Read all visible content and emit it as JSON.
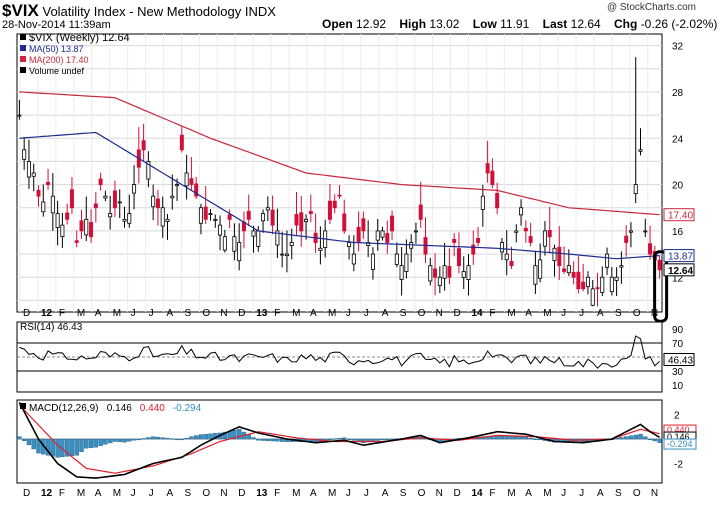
{
  "header": {
    "symbol": "$VIX",
    "name": "Volatility Index - New Methodology",
    "exchange": "INDX",
    "date": "28-Nov-2014 11:39am",
    "credit": "@ StockCharts.com",
    "quote": {
      "open_label": "Open",
      "open": "12.92",
      "high_label": "High",
      "high": "13.02",
      "low_label": "Low",
      "low": "11.91",
      "last_label": "Last",
      "last": "12.64",
      "chg_label": "Chg",
      "chg": "-0.26 (-2.02%)"
    }
  },
  "colors": {
    "up": "#000000",
    "down": "#d0103a",
    "ma50": "#1d2b8f",
    "ma200": "#c8283a",
    "macd": "#000000",
    "signal": "#e0202a",
    "hist": "#3a8fc0",
    "hist_text": "#3a8fc0"
  },
  "chart_data": [
    {
      "type": "candlestick",
      "title": "$VIX (Weekly) 12.64",
      "legend": [
        {
          "label": "$VIX (Weekly) 12.64",
          "color": "#000000"
        },
        {
          "label": "MA(50) 13.87",
          "color": "#1d2b8f"
        },
        {
          "label": "MA(200) 17.40",
          "color": "#c8283a"
        },
        {
          "label": "Volume undef",
          "color": "#000000"
        }
      ],
      "ylim": [
        9,
        33
      ],
      "yticks": [
        10,
        12,
        14,
        16,
        18,
        20,
        22,
        24,
        26,
        28,
        30,
        32
      ],
      "ytick_labels": [
        "12",
        "16",
        "20",
        "24",
        "28",
        "32"
      ],
      "ytick_label_values": [
        12,
        16,
        20,
        24,
        28,
        32
      ],
      "value_labels": [
        {
          "text": "17.40",
          "value": 17.4,
          "color": "#c8283a"
        },
        {
          "text": "13.87",
          "value": 13.87,
          "color": "#1d2b8f"
        },
        {
          "text": "12.64",
          "value": 12.64,
          "color": "#000000"
        }
      ],
      "x_month_labels": [
        "D",
        "12",
        "F",
        "M",
        "A",
        "M",
        "J",
        "J",
        "A",
        "S",
        "O",
        "N",
        "D",
        "13",
        "F",
        "M",
        "A",
        "M",
        "J",
        "J",
        "A",
        "S",
        "O",
        "N",
        "D",
        "14",
        "F",
        "M",
        "A",
        "M",
        "J",
        "J",
        "A",
        "S",
        "O",
        "N"
      ],
      "vix_close_anchors": [
        [
          0,
          26
        ],
        [
          1,
          23
        ],
        [
          2,
          22
        ],
        [
          3,
          21
        ],
        [
          4,
          19
        ],
        [
          5,
          18.5
        ],
        [
          6,
          20
        ],
        [
          7,
          19
        ],
        [
          8,
          17.5
        ],
        [
          9,
          16.5
        ],
        [
          10,
          17
        ],
        [
          11,
          18
        ],
        [
          12,
          15
        ],
        [
          13,
          16
        ],
        [
          14,
          17
        ],
        [
          15,
          15.5
        ],
        [
          16,
          18
        ],
        [
          17,
          20
        ],
        [
          18,
          19
        ],
        [
          19,
          17.5
        ],
        [
          20,
          18
        ],
        [
          21,
          18.5
        ],
        [
          22,
          17
        ],
        [
          23,
          17.5
        ],
        [
          24,
          20
        ],
        [
          25,
          21.5
        ],
        [
          26,
          23
        ],
        [
          27,
          22
        ],
        [
          28,
          19
        ],
        [
          29,
          18
        ],
        [
          30,
          18
        ],
        [
          31,
          17
        ],
        [
          32,
          19
        ],
        [
          33,
          20
        ],
        [
          34,
          23
        ],
        [
          35,
          21
        ],
        [
          36,
          20
        ],
        [
          37,
          19
        ],
        [
          38,
          18
        ],
        [
          39,
          17
        ],
        [
          40,
          17.5
        ],
        [
          41,
          17
        ],
        [
          42,
          16.5
        ],
        [
          43,
          15.5
        ],
        [
          44,
          17
        ],
        [
          45,
          15.5
        ],
        [
          46,
          15
        ],
        [
          47,
          16
        ],
        [
          48,
          17
        ],
        [
          49,
          16
        ],
        [
          50,
          16
        ],
        [
          51,
          17.5
        ],
        [
          52,
          18
        ],
        [
          53,
          16.5
        ],
        [
          54,
          16
        ],
        [
          55,
          14
        ],
        [
          56,
          14
        ],
        [
          57,
          15
        ],
        [
          58,
          16.5
        ],
        [
          59,
          16
        ],
        [
          60,
          17
        ],
        [
          61,
          17.5
        ],
        [
          62,
          15
        ],
        [
          63,
          14.5
        ],
        [
          64,
          16
        ],
        [
          65,
          17
        ],
        [
          66,
          18
        ],
        [
          67,
          19
        ],
        [
          68,
          16
        ],
        [
          69,
          15
        ],
        [
          70,
          14
        ],
        [
          71,
          15
        ],
        [
          72,
          16
        ],
        [
          73,
          15
        ],
        [
          74,
          14
        ],
        [
          75,
          16
        ],
        [
          76,
          16
        ],
        [
          77,
          15
        ],
        [
          78,
          16
        ],
        [
          79,
          14
        ],
        [
          80,
          13
        ],
        [
          81,
          14
        ],
        [
          82,
          15
        ],
        [
          83,
          16
        ],
        [
          84,
          17
        ],
        [
          85,
          14
        ],
        [
          86,
          13
        ],
        [
          87,
          12
        ],
        [
          88,
          12
        ],
        [
          89,
          13
        ],
        [
          90,
          12
        ],
        [
          91,
          15
        ],
        [
          92,
          13
        ],
        [
          93,
          12.5
        ],
        [
          94,
          13
        ],
        [
          95,
          14
        ],
        [
          96,
          15
        ],
        [
          97,
          19
        ],
        [
          98,
          21
        ],
        [
          99,
          20
        ],
        [
          100,
          18
        ],
        [
          101,
          15
        ],
        [
          102,
          14
        ],
        [
          103,
          13
        ],
        [
          104,
          16
        ],
        [
          105,
          18
        ],
        [
          106,
          16
        ],
        [
          107,
          15
        ],
        [
          108,
          13
        ],
        [
          109,
          13.5
        ],
        [
          110,
          16
        ],
        [
          111,
          15.5
        ],
        [
          112,
          14.5
        ],
        [
          113,
          13
        ],
        [
          114,
          12.5
        ],
        [
          115,
          13
        ],
        [
          116,
          12
        ],
        [
          117,
          11
        ],
        [
          118,
          11
        ],
        [
          119,
          12
        ],
        [
          120,
          11
        ],
        [
          121,
          11
        ],
        [
          122,
          12
        ],
        [
          123,
          14
        ],
        [
          124,
          12
        ],
        [
          125,
          12
        ],
        [
          126,
          13
        ],
        [
          127,
          15
        ],
        [
          128,
          16
        ],
        [
          129,
          20
        ],
        [
          130,
          23
        ],
        [
          131,
          16
        ],
        [
          132,
          14
        ],
        [
          133,
          13.5
        ],
        [
          134,
          12.64
        ]
      ],
      "ma50_anchors": [
        [
          0,
          24
        ],
        [
          16,
          24.5
        ],
        [
          30,
          21
        ],
        [
          50,
          16
        ],
        [
          70,
          15
        ],
        [
          100,
          14.5
        ],
        [
          115,
          14
        ],
        [
          125,
          13.6
        ],
        [
          134,
          13.87
        ]
      ],
      "ma200_anchors": [
        [
          0,
          28
        ],
        [
          20,
          27.5
        ],
        [
          40,
          24
        ],
        [
          60,
          21
        ],
        [
          80,
          20
        ],
        [
          100,
          19.5
        ],
        [
          115,
          18
        ],
        [
          134,
          17.4
        ]
      ],
      "spike": {
        "value": 31,
        "index": 129
      }
    },
    {
      "type": "line",
      "title": "RSI(14) 46.43",
      "ylim": [
        0,
        100
      ],
      "reference_lines": [
        70,
        50,
        30
      ],
      "ytick_labels": [
        "90",
        "70",
        "30",
        "10"
      ],
      "ytick_label_values": [
        90,
        70,
        30,
        10
      ],
      "value_label": {
        "text": "46.43",
        "value": 46.43
      }
    },
    {
      "type": "line",
      "title": "MACD(12,26,9)",
      "legend": [
        {
          "label": "MACD(12,26,9)",
          "color": "#000000"
        },
        {
          "label": "0.146",
          "color": "#000000"
        },
        {
          "label": "0.440",
          "color": "#e0202a"
        },
        {
          "label": "-0.294",
          "color": "#3a8fc0"
        }
      ],
      "ylim": [
        -3.6,
        3.2
      ],
      "ytick_labels": [
        "2",
        "-2"
      ],
      "ytick_label_values": [
        2,
        -2
      ],
      "value_labels": [
        {
          "text": "0.440",
          "value": 0.44
        },
        {
          "text": "0.146",
          "value": 0.146
        },
        {
          "text": "-0.294",
          "value": -0.294
        }
      ],
      "macd_anchors": [
        [
          0,
          3
        ],
        [
          4,
          0
        ],
        [
          8,
          -2
        ],
        [
          12,
          -3.1
        ],
        [
          16,
          -3.2
        ],
        [
          22,
          -2.9
        ],
        [
          28,
          -2
        ],
        [
          34,
          -1.5
        ],
        [
          38,
          -0.5
        ],
        [
          42,
          0.3
        ],
        [
          46,
          1
        ],
        [
          50,
          0.5
        ],
        [
          56,
          0
        ],
        [
          62,
          -0.3
        ],
        [
          68,
          -0.1
        ],
        [
          72,
          -0.5
        ],
        [
          80,
          0
        ],
        [
          84,
          0.3
        ],
        [
          88,
          -0.3
        ],
        [
          94,
          0.1
        ],
        [
          100,
          0.6
        ],
        [
          106,
          0.4
        ],
        [
          112,
          -0.2
        ],
        [
          118,
          -0.3
        ],
        [
          124,
          0
        ],
        [
          128,
          0.8
        ],
        [
          130,
          1.2
        ],
        [
          132,
          0.6
        ],
        [
          134,
          0.146
        ]
      ],
      "signal_anchors": [
        [
          0,
          2.8
        ],
        [
          8,
          -0.5
        ],
        [
          14,
          -2.4
        ],
        [
          20,
          -2.8
        ],
        [
          28,
          -2.2
        ],
        [
          36,
          -1.2
        ],
        [
          42,
          -0.2
        ],
        [
          50,
          0.6
        ],
        [
          58,
          0.1
        ],
        [
          66,
          -0.2
        ],
        [
          76,
          -0.2
        ],
        [
          84,
          0.1
        ],
        [
          92,
          -0.1
        ],
        [
          100,
          0.3
        ],
        [
          108,
          0.2
        ],
        [
          116,
          -0.1
        ],
        [
          124,
          0
        ],
        [
          130,
          0.8
        ],
        [
          134,
          0.44
        ]
      ]
    }
  ]
}
